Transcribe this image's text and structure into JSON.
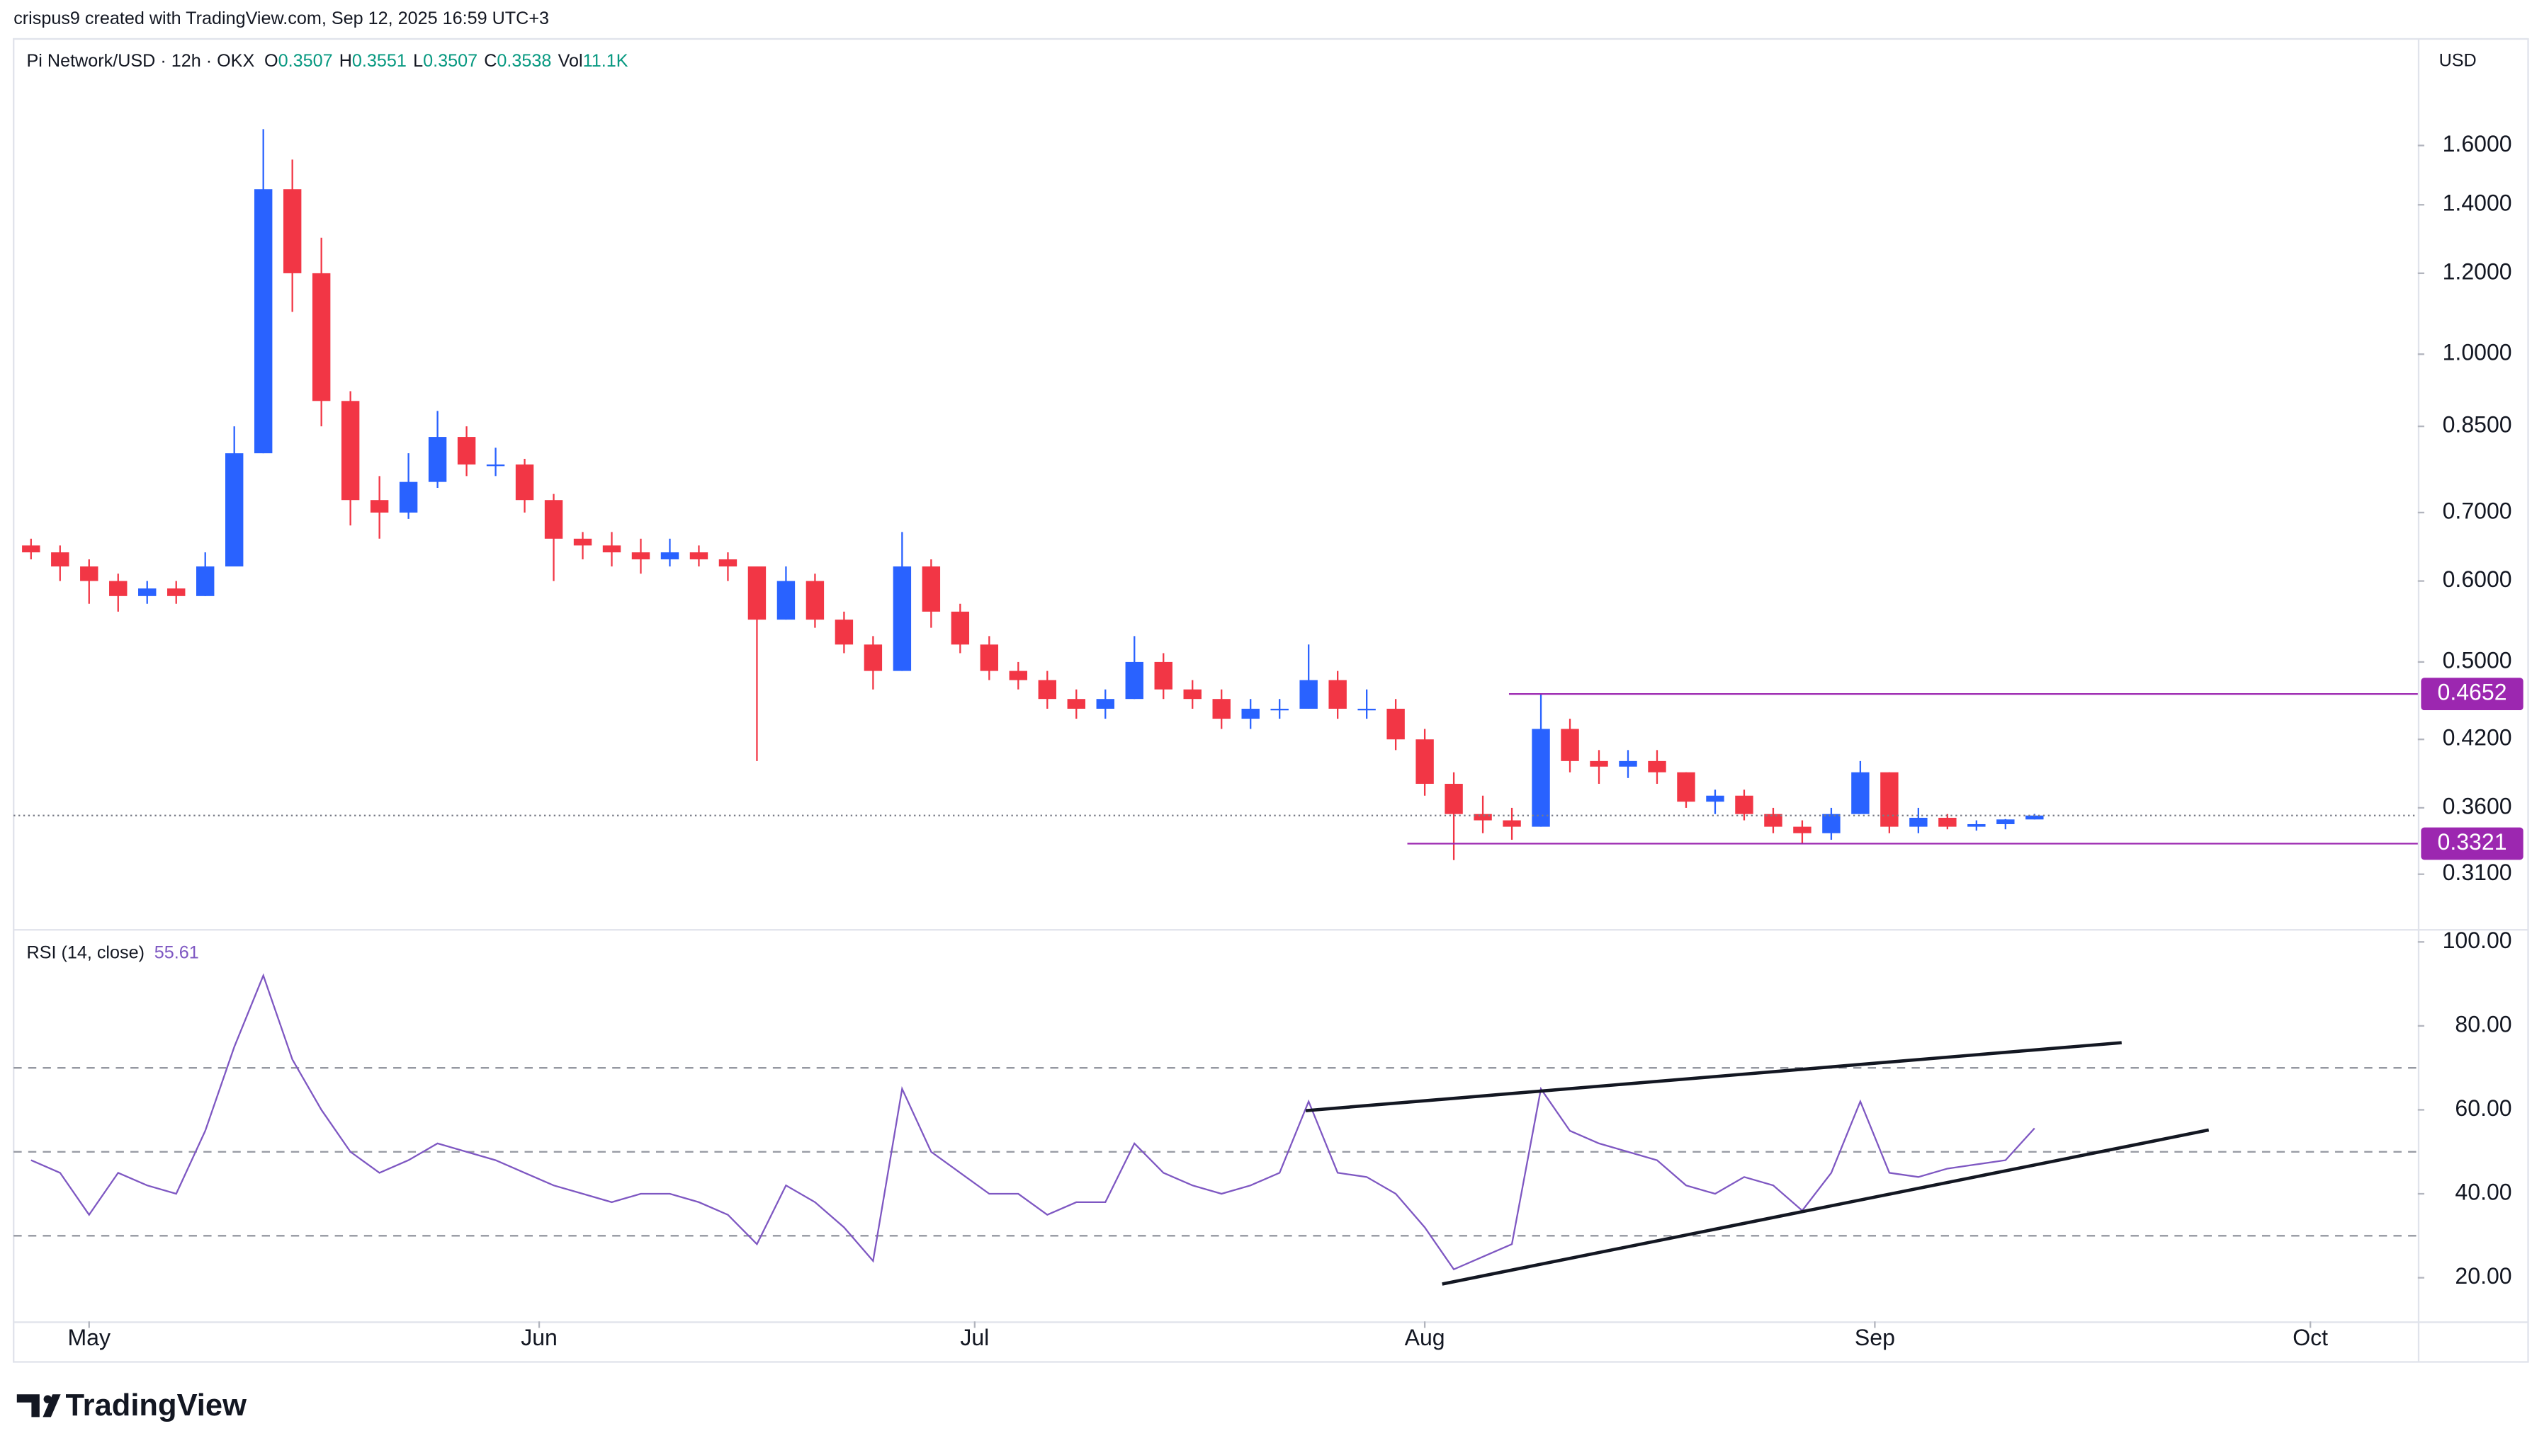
{
  "header": {
    "credit": "crispus9 created with TradingView.com, Sep 12, 2025 16:59 UTC+3",
    "currency": "USD",
    "brand": "TradingView"
  },
  "chart_data": {
    "type": "candlestick",
    "title": "Pi Network/USD · 12h · OKX",
    "ohlc_labels": [
      "O",
      "H",
      "L",
      "C"
    ],
    "ohlc": [
      0.3507,
      0.3551,
      0.3507,
      0.3538
    ],
    "volume_label": "Vol",
    "volume": "11.1K",
    "up_color": "#2962ff",
    "down_color": "#f23645",
    "log_scale": true,
    "ylim": [
      0.275,
      1.99
    ],
    "yticks": [
      {
        "value": 1.6,
        "label": "1.6000"
      },
      {
        "value": 1.4,
        "label": "1.4000"
      },
      {
        "value": 1.2,
        "label": "1.2000"
      },
      {
        "value": 1.0,
        "label": "1.0000"
      },
      {
        "value": 0.85,
        "label": "0.8500"
      },
      {
        "value": 0.7,
        "label": "0.7000"
      },
      {
        "value": 0.6,
        "label": "0.6000"
      },
      {
        "value": 0.5,
        "label": "0.5000"
      },
      {
        "value": 0.42,
        "label": "0.4200"
      },
      {
        "value": 0.36,
        "label": "0.3600"
      },
      {
        "value": 0.31,
        "label": "0.3100"
      }
    ],
    "xlim": [
      -0.6,
      82.2
    ],
    "xticks": [
      {
        "value": 2,
        "label": "May"
      },
      {
        "value": 17.5,
        "label": "Jun"
      },
      {
        "value": 32.5,
        "label": "Jul"
      },
      {
        "value": 48,
        "label": "Aug"
      },
      {
        "value": 63.5,
        "label": "Sep"
      },
      {
        "value": 78.5,
        "label": "Oct"
      }
    ],
    "candles": [
      [
        0.65,
        0.66,
        0.63,
        0.64
      ],
      [
        0.64,
        0.65,
        0.6,
        0.62
      ],
      [
        0.62,
        0.63,
        0.57,
        0.6
      ],
      [
        0.6,
        0.61,
        0.56,
        0.58
      ],
      [
        0.58,
        0.6,
        0.57,
        0.59
      ],
      [
        0.59,
        0.6,
        0.57,
        0.58
      ],
      [
        0.58,
        0.64,
        0.58,
        0.62
      ],
      [
        0.62,
        0.85,
        0.62,
        0.8
      ],
      [
        0.8,
        1.66,
        0.8,
        1.45
      ],
      [
        1.45,
        1.55,
        1.1,
        1.2
      ],
      [
        1.2,
        1.3,
        0.85,
        0.9
      ],
      [
        0.9,
        0.92,
        0.68,
        0.72
      ],
      [
        0.72,
        0.76,
        0.66,
        0.7
      ],
      [
        0.7,
        0.8,
        0.69,
        0.75
      ],
      [
        0.75,
        0.88,
        0.74,
        0.83
      ],
      [
        0.83,
        0.85,
        0.76,
        0.78
      ],
      [
        0.78,
        0.81,
        0.76,
        0.78
      ],
      [
        0.78,
        0.79,
        0.7,
        0.72
      ],
      [
        0.72,
        0.73,
        0.6,
        0.66
      ],
      [
        0.66,
        0.67,
        0.63,
        0.65
      ],
      [
        0.65,
        0.67,
        0.62,
        0.64
      ],
      [
        0.64,
        0.66,
        0.61,
        0.63
      ],
      [
        0.63,
        0.66,
        0.62,
        0.64
      ],
      [
        0.64,
        0.65,
        0.62,
        0.63
      ],
      [
        0.63,
        0.64,
        0.6,
        0.62
      ],
      [
        0.62,
        0.62,
        0.4,
        0.55
      ],
      [
        0.55,
        0.62,
        0.55,
        0.6
      ],
      [
        0.6,
        0.61,
        0.54,
        0.55
      ],
      [
        0.55,
        0.56,
        0.51,
        0.52
      ],
      [
        0.52,
        0.53,
        0.47,
        0.49
      ],
      [
        0.49,
        0.67,
        0.49,
        0.62
      ],
      [
        0.62,
        0.63,
        0.54,
        0.56
      ],
      [
        0.56,
        0.57,
        0.51,
        0.52
      ],
      [
        0.52,
        0.53,
        0.48,
        0.49
      ],
      [
        0.49,
        0.5,
        0.47,
        0.48
      ],
      [
        0.48,
        0.49,
        0.45,
        0.46
      ],
      [
        0.46,
        0.47,
        0.44,
        0.45
      ],
      [
        0.45,
        0.47,
        0.44,
        0.46
      ],
      [
        0.46,
        0.53,
        0.46,
        0.5
      ],
      [
        0.5,
        0.51,
        0.46,
        0.47
      ],
      [
        0.47,
        0.48,
        0.45,
        0.46
      ],
      [
        0.46,
        0.47,
        0.43,
        0.44
      ],
      [
        0.44,
        0.46,
        0.43,
        0.45
      ],
      [
        0.45,
        0.46,
        0.44,
        0.45
      ],
      [
        0.45,
        0.52,
        0.45,
        0.48
      ],
      [
        0.48,
        0.49,
        0.44,
        0.45
      ],
      [
        0.45,
        0.47,
        0.44,
        0.45
      ],
      [
        0.45,
        0.46,
        0.41,
        0.42
      ],
      [
        0.42,
        0.43,
        0.37,
        0.38
      ],
      [
        0.38,
        0.39,
        0.32,
        0.355
      ],
      [
        0.355,
        0.37,
        0.34,
        0.35
      ],
      [
        0.35,
        0.36,
        0.335,
        0.345
      ],
      [
        0.345,
        0.4652,
        0.345,
        0.43
      ],
      [
        0.43,
        0.44,
        0.39,
        0.4
      ],
      [
        0.4,
        0.41,
        0.38,
        0.395
      ],
      [
        0.395,
        0.41,
        0.385,
        0.4
      ],
      [
        0.4,
        0.41,
        0.38,
        0.39
      ],
      [
        0.39,
        0.39,
        0.36,
        0.365
      ],
      [
        0.365,
        0.375,
        0.355,
        0.37
      ],
      [
        0.37,
        0.375,
        0.35,
        0.355
      ],
      [
        0.355,
        0.36,
        0.34,
        0.345
      ],
      [
        0.345,
        0.35,
        0.3321,
        0.34
      ],
      [
        0.34,
        0.36,
        0.335,
        0.355
      ],
      [
        0.355,
        0.4,
        0.355,
        0.39
      ],
      [
        0.39,
        0.39,
        0.34,
        0.345
      ],
      [
        0.345,
        0.36,
        0.34,
        0.352
      ],
      [
        0.352,
        0.355,
        0.343,
        0.345
      ],
      [
        0.345,
        0.35,
        0.342,
        0.347
      ],
      [
        0.347,
        0.351,
        0.343,
        0.3507
      ],
      [
        0.3507,
        0.3551,
        0.3507,
        0.3538
      ]
    ],
    "price_lines": [
      {
        "value": 0.4652,
        "start": 50.9,
        "color": "#9c27b0"
      },
      {
        "value": 0.3321,
        "start": 47.4,
        "color": "#9c27b0"
      }
    ],
    "last_price_line": true,
    "rsi": {
      "type": "line",
      "title": "RSI (14, close)",
      "last": 55.61,
      "color": "#7e57c2",
      "values": [
        48,
        45,
        35,
        45,
        42,
        40,
        55,
        75,
        92,
        72,
        60,
        50,
        45,
        48,
        52,
        50,
        48,
        45,
        42,
        40,
        38,
        40,
        40,
        38,
        35,
        28,
        42,
        38,
        32,
        24,
        65,
        50,
        45,
        40,
        40,
        35,
        38,
        38,
        52,
        45,
        42,
        40,
        42,
        45,
        62,
        45,
        44,
        40,
        32,
        22,
        25,
        28,
        65,
        55,
        52,
        50,
        48,
        42,
        40,
        44,
        42,
        36,
        45,
        62,
        45,
        44,
        46,
        47,
        48,
        55.61
      ],
      "ylim": [
        9.6,
        102.3
      ],
      "yticks": [
        {
          "value": 100,
          "label": "100.00"
        },
        {
          "value": 80,
          "label": "80.00"
        },
        {
          "value": 60,
          "label": "60.00"
        },
        {
          "value": 40,
          "label": "40.00"
        },
        {
          "value": 20,
          "label": "20.00"
        }
      ],
      "levels": [
        70,
        50,
        30
      ],
      "trendlines": [
        {
          "points": [
            [
              43.9,
              59.8
            ],
            [
              72,
              76
            ]
          ]
        },
        {
          "points": [
            [
              48.6,
              18.5
            ],
            [
              75,
              55.2
            ]
          ]
        }
      ]
    }
  }
}
